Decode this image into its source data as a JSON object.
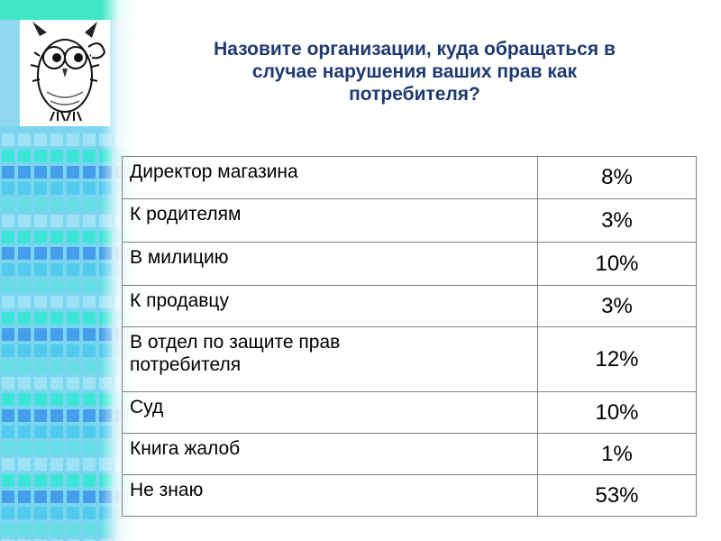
{
  "slide": {
    "title_lines": [
      "Назовите организации, куда обращаться в",
      "случае нарушения ваших прав как",
      "потребителя?"
    ],
    "owl_icon": "owl-cartoon-icon",
    "colors": {
      "title": "#1f3a6e",
      "sidebar_cyan": "#2ee8d0",
      "sidebar_blue": "#3a8ee8",
      "border": "#7f7f7f"
    }
  },
  "table": {
    "rows": [
      {
        "label_lines": [
          "Директор магазина"
        ],
        "value": "8%"
      },
      {
        "label_lines": [
          "К родителям"
        ],
        "value": "3%"
      },
      {
        "label_lines": [
          "В милицию"
        ],
        "value": "10%"
      },
      {
        "label_lines": [
          "К продавцу"
        ],
        "value": "3%"
      },
      {
        "label_lines": [
          "В отдел по защите прав",
          "потребителя"
        ],
        "value": "12%"
      },
      {
        "label_lines": [
          "Суд"
        ],
        "value": "10%"
      },
      {
        "label_lines": [
          "Книга жалоб"
        ],
        "value": "1%"
      },
      {
        "label_lines": [
          "Не знаю"
        ],
        "value": "53%"
      }
    ]
  }
}
